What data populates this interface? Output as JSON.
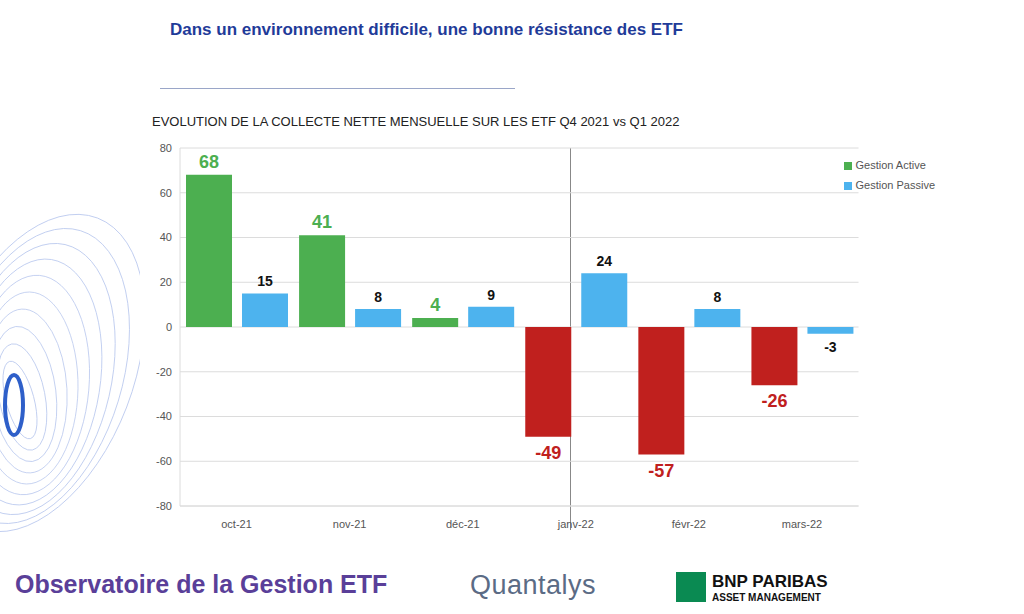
{
  "page": {
    "title": "Dans un environnement difficile, une bonne résistance des ETF",
    "footer": [
      "Observatoire de la Gestion ETF",
      "Quantalys",
      "BNP PARIBAS",
      "ASSET MANAGEMENT"
    ]
  },
  "chart_data": {
    "type": "bar",
    "title": "EVOLUTION DE LA COLLECTE NETTE MENSUELLE SUR LES ETF Q4 2021 vs Q1 2022",
    "categories": [
      "oct-21",
      "nov-21",
      "déc-21",
      "janv-22",
      "févr-22",
      "mars-22"
    ],
    "series": [
      {
        "name": "Gestion Active",
        "color": "#4caf50",
        "colors": [
          "#4caf50",
          "#4caf50",
          "#4caf50",
          "#c0201e",
          "#c0201e",
          "#c0201e"
        ],
        "values": [
          68,
          41,
          4,
          -49,
          -57,
          -26
        ]
      },
      {
        "name": "Gestion Passive",
        "color": "#4db3ee",
        "values": [
          15,
          8,
          9,
          24,
          8,
          -3
        ]
      }
    ],
    "ylim": [
      -80,
      80
    ],
    "yticks": [
      -80,
      -60,
      -40,
      -20,
      0,
      20,
      40,
      60,
      80
    ],
    "grid": true,
    "legend": "top-right",
    "data_labels": true
  }
}
